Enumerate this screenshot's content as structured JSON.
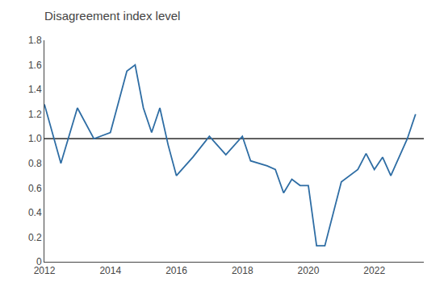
{
  "chart_data": {
    "type": "line",
    "title": "Disagreement index level",
    "color": "#2E6DA4",
    "x": [
      2012.0,
      2012.5,
      2013.0,
      2013.5,
      2014.0,
      2014.5,
      2014.75,
      2015.0,
      2015.25,
      2015.5,
      2015.75,
      2016.0,
      2016.5,
      2017.0,
      2017.5,
      2018.0,
      2018.25,
      2018.5,
      2018.75,
      2019.0,
      2019.25,
      2019.5,
      2019.75,
      2020.0,
      2020.25,
      2020.5,
      2021.0,
      2021.5,
      2021.75,
      2022.0,
      2022.25,
      2022.5,
      2022.75,
      2023.0,
      2023.25
    ],
    "values": [
      1.28,
      0.8,
      1.25,
      1.0,
      1.05,
      1.55,
      1.6,
      1.25,
      1.05,
      1.25,
      0.95,
      0.7,
      0.85,
      1.02,
      0.87,
      1.02,
      0.82,
      0.8,
      0.78,
      0.75,
      0.56,
      0.67,
      0.62,
      0.62,
      0.13,
      0.13,
      0.65,
      0.75,
      0.88,
      0.75,
      0.85,
      0.7,
      0.85,
      1.0,
      1.2
    ],
    "reference_line": {
      "value": 1.0,
      "color": "#000000"
    },
    "xlim": [
      2012,
      2023.5
    ],
    "xticks": [
      2012,
      2014,
      2016,
      2018,
      2020,
      2022
    ],
    "ylim": [
      0,
      1.8
    ],
    "yticks": [
      0,
      0.2,
      0.4,
      0.6,
      0.8,
      {
        "value": 1.0,
        "label": "1.0"
      },
      1.2,
      1.4,
      1.6,
      1.8
    ],
    "grid": false
  }
}
